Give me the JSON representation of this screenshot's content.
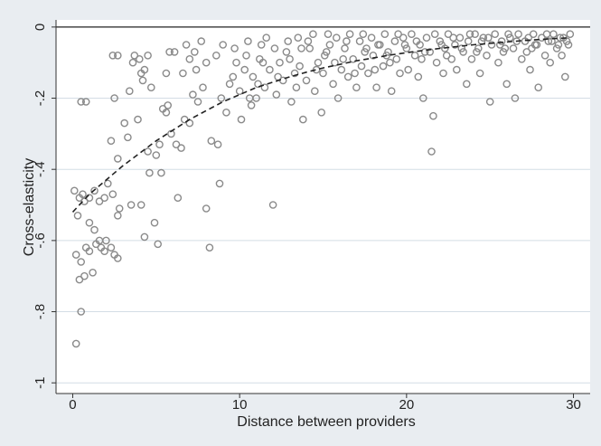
{
  "chart_data": {
    "type": "scatter",
    "title": "",
    "xlabel": "Distance between providers",
    "ylabel": "Cross-elasticity",
    "xlim": [
      -1,
      31
    ],
    "ylim": [
      -1.03,
      0.02
    ],
    "xticks": [
      0,
      10,
      20,
      30
    ],
    "xtick_labels": [
      "0",
      "10",
      "20",
      "30"
    ],
    "yticks": [
      0,
      -0.2,
      -0.4,
      -0.6,
      -0.8,
      -1
    ],
    "ytick_labels": [
      "0",
      "-.2",
      "-.4",
      "-.6",
      "-.8",
      "-1"
    ],
    "grid": "horizontal",
    "legend": "none",
    "colors": {
      "background": "#e9edf1",
      "plot_area": "#ffffff",
      "markers": "#8a8a8a",
      "fit_line": "#222222",
      "grid": "#d4dde5"
    },
    "series": [
      {
        "marker": "hollow-circle",
        "points": [
          [
            0.1,
            -0.46
          ],
          [
            0.3,
            -0.53
          ],
          [
            0.4,
            -0.48
          ],
          [
            0.6,
            -0.47
          ],
          [
            0.7,
            -0.49
          ],
          [
            1.0,
            -0.48
          ],
          [
            1.3,
            -0.46
          ],
          [
            1.6,
            -0.49
          ],
          [
            1.9,
            -0.48
          ],
          [
            2.4,
            -0.47
          ],
          [
            0.5,
            -0.21
          ],
          [
            0.8,
            -0.21
          ],
          [
            2.4,
            -0.08
          ],
          [
            2.7,
            -0.08
          ],
          [
            2.5,
            -0.2
          ],
          [
            2.3,
            -0.32
          ],
          [
            2.7,
            -0.37
          ],
          [
            2.8,
            -0.51
          ],
          [
            2.7,
            -0.53
          ],
          [
            3.1,
            -0.27
          ],
          [
            3.3,
            -0.31
          ],
          [
            3.4,
            -0.18
          ],
          [
            3.5,
            -0.5
          ],
          [
            3.6,
            -0.1
          ],
          [
            3.7,
            -0.08
          ],
          [
            3.9,
            -0.26
          ],
          [
            4.0,
            -0.09
          ],
          [
            4.1,
            -0.13
          ],
          [
            4.2,
            -0.15
          ],
          [
            4.3,
            -0.12
          ],
          [
            4.1,
            -0.5
          ],
          [
            4.3,
            -0.59
          ],
          [
            4.5,
            -0.08
          ],
          [
            4.5,
            -0.35
          ],
          [
            4.6,
            -0.41
          ],
          [
            4.7,
            -0.17
          ],
          [
            4.9,
            -0.55
          ],
          [
            5.0,
            -0.36
          ],
          [
            5.1,
            -0.61
          ],
          [
            5.2,
            -0.33
          ],
          [
            5.3,
            -0.41
          ],
          [
            5.4,
            -0.23
          ],
          [
            5.6,
            -0.24
          ],
          [
            5.6,
            -0.13
          ],
          [
            5.7,
            -0.22
          ],
          [
            5.8,
            -0.07
          ],
          [
            5.9,
            -0.3
          ],
          [
            6.1,
            -0.07
          ],
          [
            6.2,
            -0.33
          ],
          [
            6.3,
            -0.48
          ],
          [
            6.5,
            -0.34
          ],
          [
            6.6,
            -0.13
          ],
          [
            6.7,
            -0.26
          ],
          [
            6.8,
            -0.05
          ],
          [
            7.0,
            -0.09
          ],
          [
            7.0,
            -0.27
          ],
          [
            7.2,
            -0.19
          ],
          [
            7.3,
            -0.07
          ],
          [
            7.4,
            -0.12
          ],
          [
            7.5,
            -0.21
          ],
          [
            7.7,
            -0.04
          ],
          [
            7.8,
            -0.17
          ],
          [
            8.0,
            -0.1
          ],
          [
            8.0,
            -0.51
          ],
          [
            8.2,
            -0.62
          ],
          [
            8.3,
            -0.32
          ],
          [
            8.6,
            -0.08
          ],
          [
            8.7,
            -0.33
          ],
          [
            8.8,
            -0.44
          ],
          [
            8.9,
            -0.2
          ],
          [
            9.0,
            -0.05
          ],
          [
            9.2,
            -0.24
          ],
          [
            9.4,
            -0.16
          ],
          [
            9.7,
            -0.06
          ],
          [
            9.8,
            -0.1
          ],
          [
            10.0,
            -0.18
          ],
          [
            10.1,
            -0.26
          ],
          [
            10.3,
            -0.12
          ],
          [
            10.5,
            -0.04
          ],
          [
            10.7,
            -0.22
          ],
          [
            10.8,
            -0.14
          ],
          [
            11.0,
            -0.2
          ],
          [
            11.2,
            -0.09
          ],
          [
            11.3,
            -0.05
          ],
          [
            11.5,
            -0.17
          ],
          [
            11.8,
            -0.12
          ],
          [
            12.0,
            -0.5
          ],
          [
            12.1,
            -0.06
          ],
          [
            12.2,
            -0.19
          ],
          [
            12.4,
            -0.1
          ],
          [
            0.2,
            -0.64
          ],
          [
            0.4,
            -0.71
          ],
          [
            0.5,
            -0.66
          ],
          [
            0.7,
            -0.7
          ],
          [
            0.8,
            -0.62
          ],
          [
            1.0,
            -0.63
          ],
          [
            1.2,
            -0.69
          ],
          [
            1.4,
            -0.61
          ],
          [
            1.6,
            -0.6
          ],
          [
            2.0,
            -0.6
          ],
          [
            2.3,
            -0.62
          ],
          [
            2.5,
            -0.64
          ],
          [
            2.7,
            -0.65
          ],
          [
            1.7,
            -0.62
          ],
          [
            1.9,
            -0.63
          ],
          [
            0.2,
            -0.89
          ],
          [
            0.5,
            -0.8
          ],
          [
            1.0,
            -0.55
          ],
          [
            1.3,
            -0.57
          ],
          [
            2.1,
            -0.44
          ],
          [
            12.6,
            -0.15
          ],
          [
            12.8,
            -0.07
          ],
          [
            13.0,
            -0.09
          ],
          [
            13.1,
            -0.21
          ],
          [
            13.3,
            -0.13
          ],
          [
            13.5,
            -0.03
          ],
          [
            13.6,
            -0.11
          ],
          [
            13.8,
            -0.26
          ],
          [
            14.0,
            -0.15
          ],
          [
            14.2,
            -0.06
          ],
          [
            14.4,
            -0.02
          ],
          [
            14.5,
            -0.18
          ],
          [
            14.7,
            -0.1
          ],
          [
            14.9,
            -0.24
          ],
          [
            15.0,
            -0.13
          ],
          [
            15.2,
            -0.07
          ],
          [
            15.4,
            -0.05
          ],
          [
            15.6,
            -0.16
          ],
          [
            15.8,
            -0.03
          ],
          [
            15.9,
            -0.2
          ],
          [
            16.1,
            -0.12
          ],
          [
            16.3,
            -0.06
          ],
          [
            16.5,
            -0.14
          ],
          [
            16.6,
            -0.02
          ],
          [
            16.8,
            -0.09
          ],
          [
            17.0,
            -0.17
          ],
          [
            17.2,
            -0.04
          ],
          [
            17.3,
            -0.11
          ],
          [
            17.5,
            -0.07
          ],
          [
            17.7,
            -0.13
          ],
          [
            17.9,
            -0.03
          ],
          [
            18.0,
            -0.08
          ],
          [
            18.2,
            -0.17
          ],
          [
            18.4,
            -0.05
          ],
          [
            18.6,
            -0.11
          ],
          [
            18.7,
            -0.02
          ],
          [
            18.9,
            -0.07
          ],
          [
            19.1,
            -0.18
          ],
          [
            19.3,
            -0.04
          ],
          [
            19.4,
            -0.09
          ],
          [
            19.6,
            -0.13
          ],
          [
            19.8,
            -0.03
          ],
          [
            20.0,
            -0.06
          ],
          [
            20.1,
            -0.12
          ],
          [
            20.3,
            -0.02
          ],
          [
            20.5,
            -0.08
          ],
          [
            20.7,
            -0.14
          ],
          [
            20.8,
            -0.05
          ],
          [
            21.0,
            -0.2
          ],
          [
            21.2,
            -0.03
          ],
          [
            21.4,
            -0.07
          ],
          [
            21.5,
            -0.35
          ],
          [
            21.6,
            -0.25
          ],
          [
            21.8,
            -0.1
          ],
          [
            22.0,
            -0.04
          ],
          [
            22.2,
            -0.13
          ],
          [
            22.3,
            -0.06
          ],
          [
            22.5,
            -0.02
          ],
          [
            22.7,
            -0.09
          ],
          [
            22.9,
            -0.05
          ],
          [
            23.0,
            -0.12
          ],
          [
            23.2,
            -0.03
          ],
          [
            23.4,
            -0.07
          ],
          [
            23.6,
            -0.16
          ],
          [
            23.7,
            -0.04
          ],
          [
            23.9,
            -0.09
          ],
          [
            24.1,
            -0.02
          ],
          [
            24.3,
            -0.06
          ],
          [
            24.4,
            -0.13
          ],
          [
            24.6,
            -0.03
          ],
          [
            24.8,
            -0.08
          ],
          [
            25.0,
            -0.21
          ],
          [
            25.1,
            -0.05
          ],
          [
            25.3,
            -0.02
          ],
          [
            25.5,
            -0.1
          ],
          [
            25.7,
            -0.04
          ],
          [
            25.8,
            -0.07
          ],
          [
            26.0,
            -0.16
          ],
          [
            26.2,
            -0.03
          ],
          [
            26.4,
            -0.06
          ],
          [
            26.5,
            -0.2
          ],
          [
            26.7,
            -0.02
          ],
          [
            26.9,
            -0.09
          ],
          [
            27.1,
            -0.04
          ],
          [
            27.2,
            -0.07
          ],
          [
            27.4,
            -0.12
          ],
          [
            27.6,
            -0.02
          ],
          [
            27.8,
            -0.05
          ],
          [
            27.9,
            -0.17
          ],
          [
            28.1,
            -0.03
          ],
          [
            28.3,
            -0.08
          ],
          [
            28.5,
            -0.04
          ],
          [
            28.6,
            -0.1
          ],
          [
            28.8,
            -0.02
          ],
          [
            29.0,
            -0.06
          ],
          [
            29.2,
            -0.03
          ],
          [
            29.3,
            -0.08
          ],
          [
            29.5,
            -0.14
          ],
          [
            29.6,
            -0.04
          ],
          [
            29.8,
            -0.02
          ],
          [
            10.4,
            -0.08
          ],
          [
            11.6,
            -0.03
          ],
          [
            12.9,
            -0.04
          ],
          [
            14.1,
            -0.04
          ],
          [
            15.3,
            -0.02
          ],
          [
            16.2,
            -0.09
          ],
          [
            17.4,
            -0.02
          ],
          [
            18.3,
            -0.05
          ],
          [
            19.5,
            -0.02
          ],
          [
            20.6,
            -0.04
          ],
          [
            21.7,
            -0.02
          ],
          [
            22.8,
            -0.03
          ],
          [
            23.8,
            -0.02
          ],
          [
            24.9,
            -0.03
          ],
          [
            26.1,
            -0.02
          ],
          [
            27.3,
            -0.03
          ],
          [
            28.4,
            -0.02
          ],
          [
            29.4,
            -0.03
          ],
          [
            16.9,
            -0.13
          ],
          [
            19.0,
            -0.1
          ],
          [
            20.9,
            -0.09
          ],
          [
            22.4,
            -0.08
          ],
          [
            24.2,
            -0.07
          ],
          [
            25.9,
            -0.06
          ],
          [
            27.7,
            -0.05
          ],
          [
            29.1,
            -0.05
          ],
          [
            15.7,
            -0.1
          ],
          [
            18.1,
            -0.12
          ],
          [
            13.7,
            -0.06
          ],
          [
            11.4,
            -0.1
          ],
          [
            17.6,
            -0.06
          ],
          [
            18.8,
            -0.08
          ],
          [
            19.9,
            -0.05
          ],
          [
            21.1,
            -0.07
          ],
          [
            22.1,
            -0.05
          ],
          [
            23.3,
            -0.06
          ],
          [
            24.5,
            -0.04
          ],
          [
            25.6,
            -0.05
          ],
          [
            26.6,
            -0.04
          ],
          [
            27.5,
            -0.06
          ],
          [
            28.7,
            -0.04
          ],
          [
            29.7,
            -0.05
          ],
          [
            16.4,
            -0.04
          ],
          [
            15.1,
            -0.08
          ],
          [
            14.6,
            -0.12
          ],
          [
            13.4,
            -0.17
          ],
          [
            12.3,
            -0.14
          ],
          [
            11.1,
            -0.16
          ],
          [
            10.6,
            -0.2
          ],
          [
            9.6,
            -0.14
          ]
        ]
      }
    ],
    "fit_curve": {
      "style": "dashed",
      "points": [
        [
          0,
          -0.52
        ],
        [
          1,
          -0.47
        ],
        [
          2,
          -0.43
        ],
        [
          3,
          -0.39
        ],
        [
          4,
          -0.355
        ],
        [
          5,
          -0.32
        ],
        [
          6,
          -0.29
        ],
        [
          7,
          -0.26
        ],
        [
          8,
          -0.235
        ],
        [
          9,
          -0.21
        ],
        [
          10,
          -0.19
        ],
        [
          11,
          -0.17
        ],
        [
          12,
          -0.155
        ],
        [
          13,
          -0.14
        ],
        [
          14,
          -0.127
        ],
        [
          15,
          -0.115
        ],
        [
          16,
          -0.105
        ],
        [
          17,
          -0.095
        ],
        [
          18,
          -0.087
        ],
        [
          19,
          -0.079
        ],
        [
          20,
          -0.072
        ],
        [
          21,
          -0.066
        ],
        [
          22,
          -0.06
        ],
        [
          23,
          -0.055
        ],
        [
          24,
          -0.05
        ],
        [
          25,
          -0.046
        ],
        [
          26,
          -0.042
        ],
        [
          27,
          -0.038
        ],
        [
          28,
          -0.035
        ],
        [
          29,
          -0.032
        ],
        [
          29.8,
          -0.03
        ]
      ]
    }
  }
}
